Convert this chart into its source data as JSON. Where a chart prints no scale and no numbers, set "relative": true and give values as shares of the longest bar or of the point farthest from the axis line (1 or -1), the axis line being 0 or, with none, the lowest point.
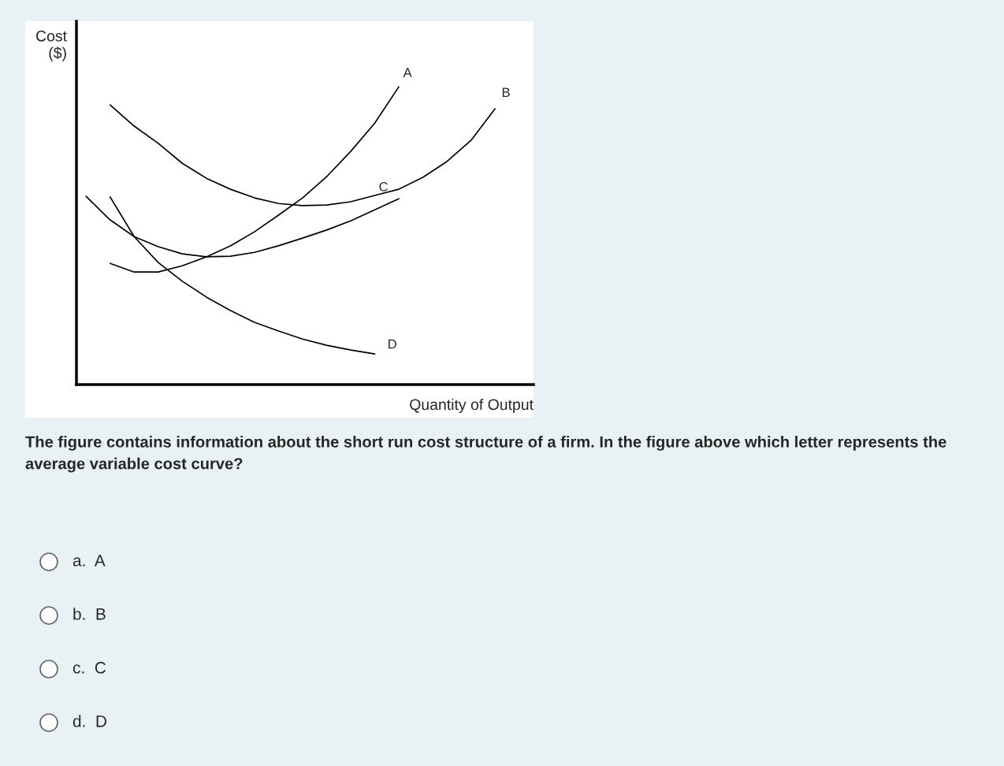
{
  "chart_data": {
    "type": "line",
    "relative": true,
    "xlabel": "Quantity of Output",
    "ylabel": "Cost\n($)",
    "color": "#000000",
    "legend": false,
    "marker": "none",
    "line_style": "solid",
    "categories": [
      null,
      null,
      null,
      null,
      null,
      null,
      null,
      null,
      null,
      null,
      null,
      null,
      null,
      null,
      null,
      null,
      null,
      null
    ],
    "series": [
      {
        "name": "A",
        "values": [
          null,
          0.407,
          0.378,
          0.378,
          0.399,
          0.429,
          0.466,
          0.513,
          0.569,
          0.627,
          0.698,
          0.783,
          0.878,
          1.0,
          null,
          null,
          null,
          null
        ]
      },
      {
        "name": "B",
        "values": [
          null,
          0.939,
          0.868,
          0.81,
          0.743,
          0.693,
          0.656,
          0.627,
          0.608,
          0.601,
          0.603,
          0.614,
          0.635,
          0.656,
          0.696,
          0.749,
          0.82,
          0.926
        ]
      },
      {
        "name": "C",
        "values": [
          0.632,
          0.553,
          0.497,
          0.463,
          0.439,
          0.429,
          0.431,
          0.444,
          0.466,
          0.492,
          0.519,
          0.55,
          0.587,
          0.624,
          null,
          null,
          null,
          null
        ]
      },
      {
        "name": "D",
        "values": [
          null,
          0.63,
          0.497,
          0.41,
          0.347,
          0.294,
          0.249,
          0.209,
          0.18,
          0.153,
          0.132,
          0.116,
          0.103,
          null,
          null,
          null,
          null,
          null
        ]
      }
    ],
    "annotations": [
      "The figure contains information about the short run cost structure of a firm. In the figure above which letter represents the average variable cost curve?",
      "a.  A",
      "b.  B",
      "c.  C",
      "d.  D"
    ]
  }
}
